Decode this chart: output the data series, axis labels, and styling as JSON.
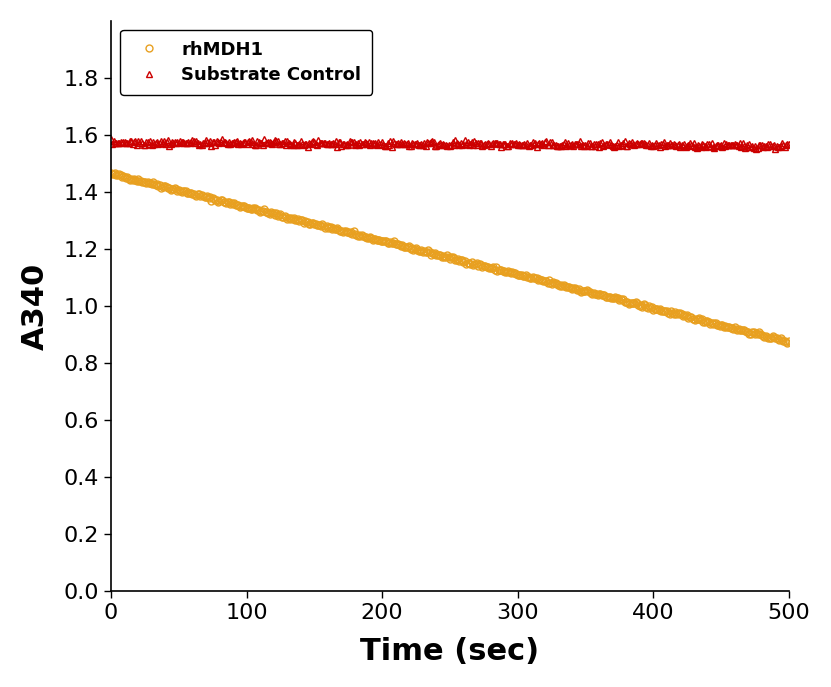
{
  "xlabel": "Time (sec)",
  "ylabel": "A340",
  "xlim": [
    0,
    500
  ],
  "ylim": [
    0.0,
    2.0
  ],
  "xticks": [
    0,
    100,
    200,
    300,
    400,
    500
  ],
  "yticks": [
    0.0,
    0.2,
    0.4,
    0.6,
    0.8,
    1.0,
    1.2,
    1.4,
    1.6,
    1.8
  ],
  "series": [
    {
      "label": "rhMDH1",
      "color": "#E8A020",
      "marker": "o",
      "marker_size": 5,
      "start_val": 1.465,
      "end_val": 0.875,
      "n_points": 501,
      "noise_scale": 0.003
    },
    {
      "label": "Substrate Control",
      "color": "#CC0000",
      "marker": "^",
      "marker_size": 5,
      "start_val": 1.575,
      "end_val": 1.562,
      "n_points": 501,
      "noise_scale": 0.005
    }
  ],
  "legend_fontsize": 13,
  "axis_label_fontsize": 22,
  "tick_fontsize": 16,
  "background_color": "#ffffff"
}
